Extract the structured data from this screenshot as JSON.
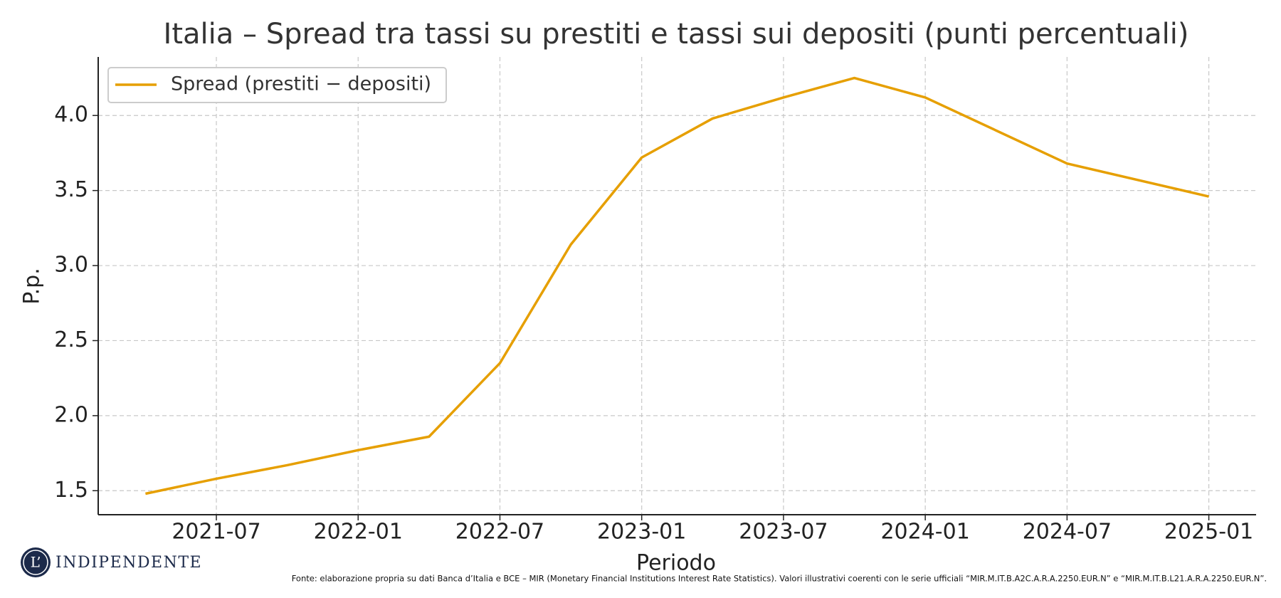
{
  "chart_data": {
    "type": "line",
    "title": "Italia – Spread tra tassi su prestiti e tassi sui depositi (punti percentuali)",
    "x_label": "Periodo",
    "y_label": "P.p.",
    "x": [
      "2021-04",
      "2021-07",
      "2021-10",
      "2022-01",
      "2022-04",
      "2022-07",
      "2022-10",
      "2023-01",
      "2023-04",
      "2023-07",
      "2023-10",
      "2024-01",
      "2024-07",
      "2025-01"
    ],
    "series": [
      {
        "name": "Spread (prestiti − depositi)",
        "color": "#e69f00",
        "values": [
          1.48,
          1.58,
          1.67,
          1.77,
          1.86,
          2.35,
          3.14,
          3.72,
          3.98,
          4.12,
          4.25,
          4.12,
          3.68,
          3.46
        ]
      }
    ],
    "xlim": [
      "2021-02",
      "2025-03"
    ],
    "xticks": [
      "2021-07",
      "2022-01",
      "2022-07",
      "2023-01",
      "2023-07",
      "2024-01",
      "2024-07",
      "2025-01"
    ],
    "ylim": [
      1.34,
      4.39
    ],
    "yticks": [
      1.5,
      {
        "value": 2,
        "label": "2.0"
      },
      2.5,
      {
        "value": 3,
        "label": "3.0"
      },
      3.5,
      {
        "value": 4,
        "label": "4.0"
      }
    ],
    "grid": true,
    "legend": "upper left",
    "source": "Fonte: elaborazione propria su dati Banca d’Italia e BCE – MIR (Monetary Financial Institutions Interest Rate Statistics). Valori illustrativi coerenti con le serie ufficiali “MIR.M.IT.B.A2C.A.R.A.2250.EUR.N” e “MIR.M.IT.B.L21.A.R.A.2250.EUR.N”."
  },
  "logo": {
    "mark": "L’",
    "name": "INDIPENDENTE"
  }
}
